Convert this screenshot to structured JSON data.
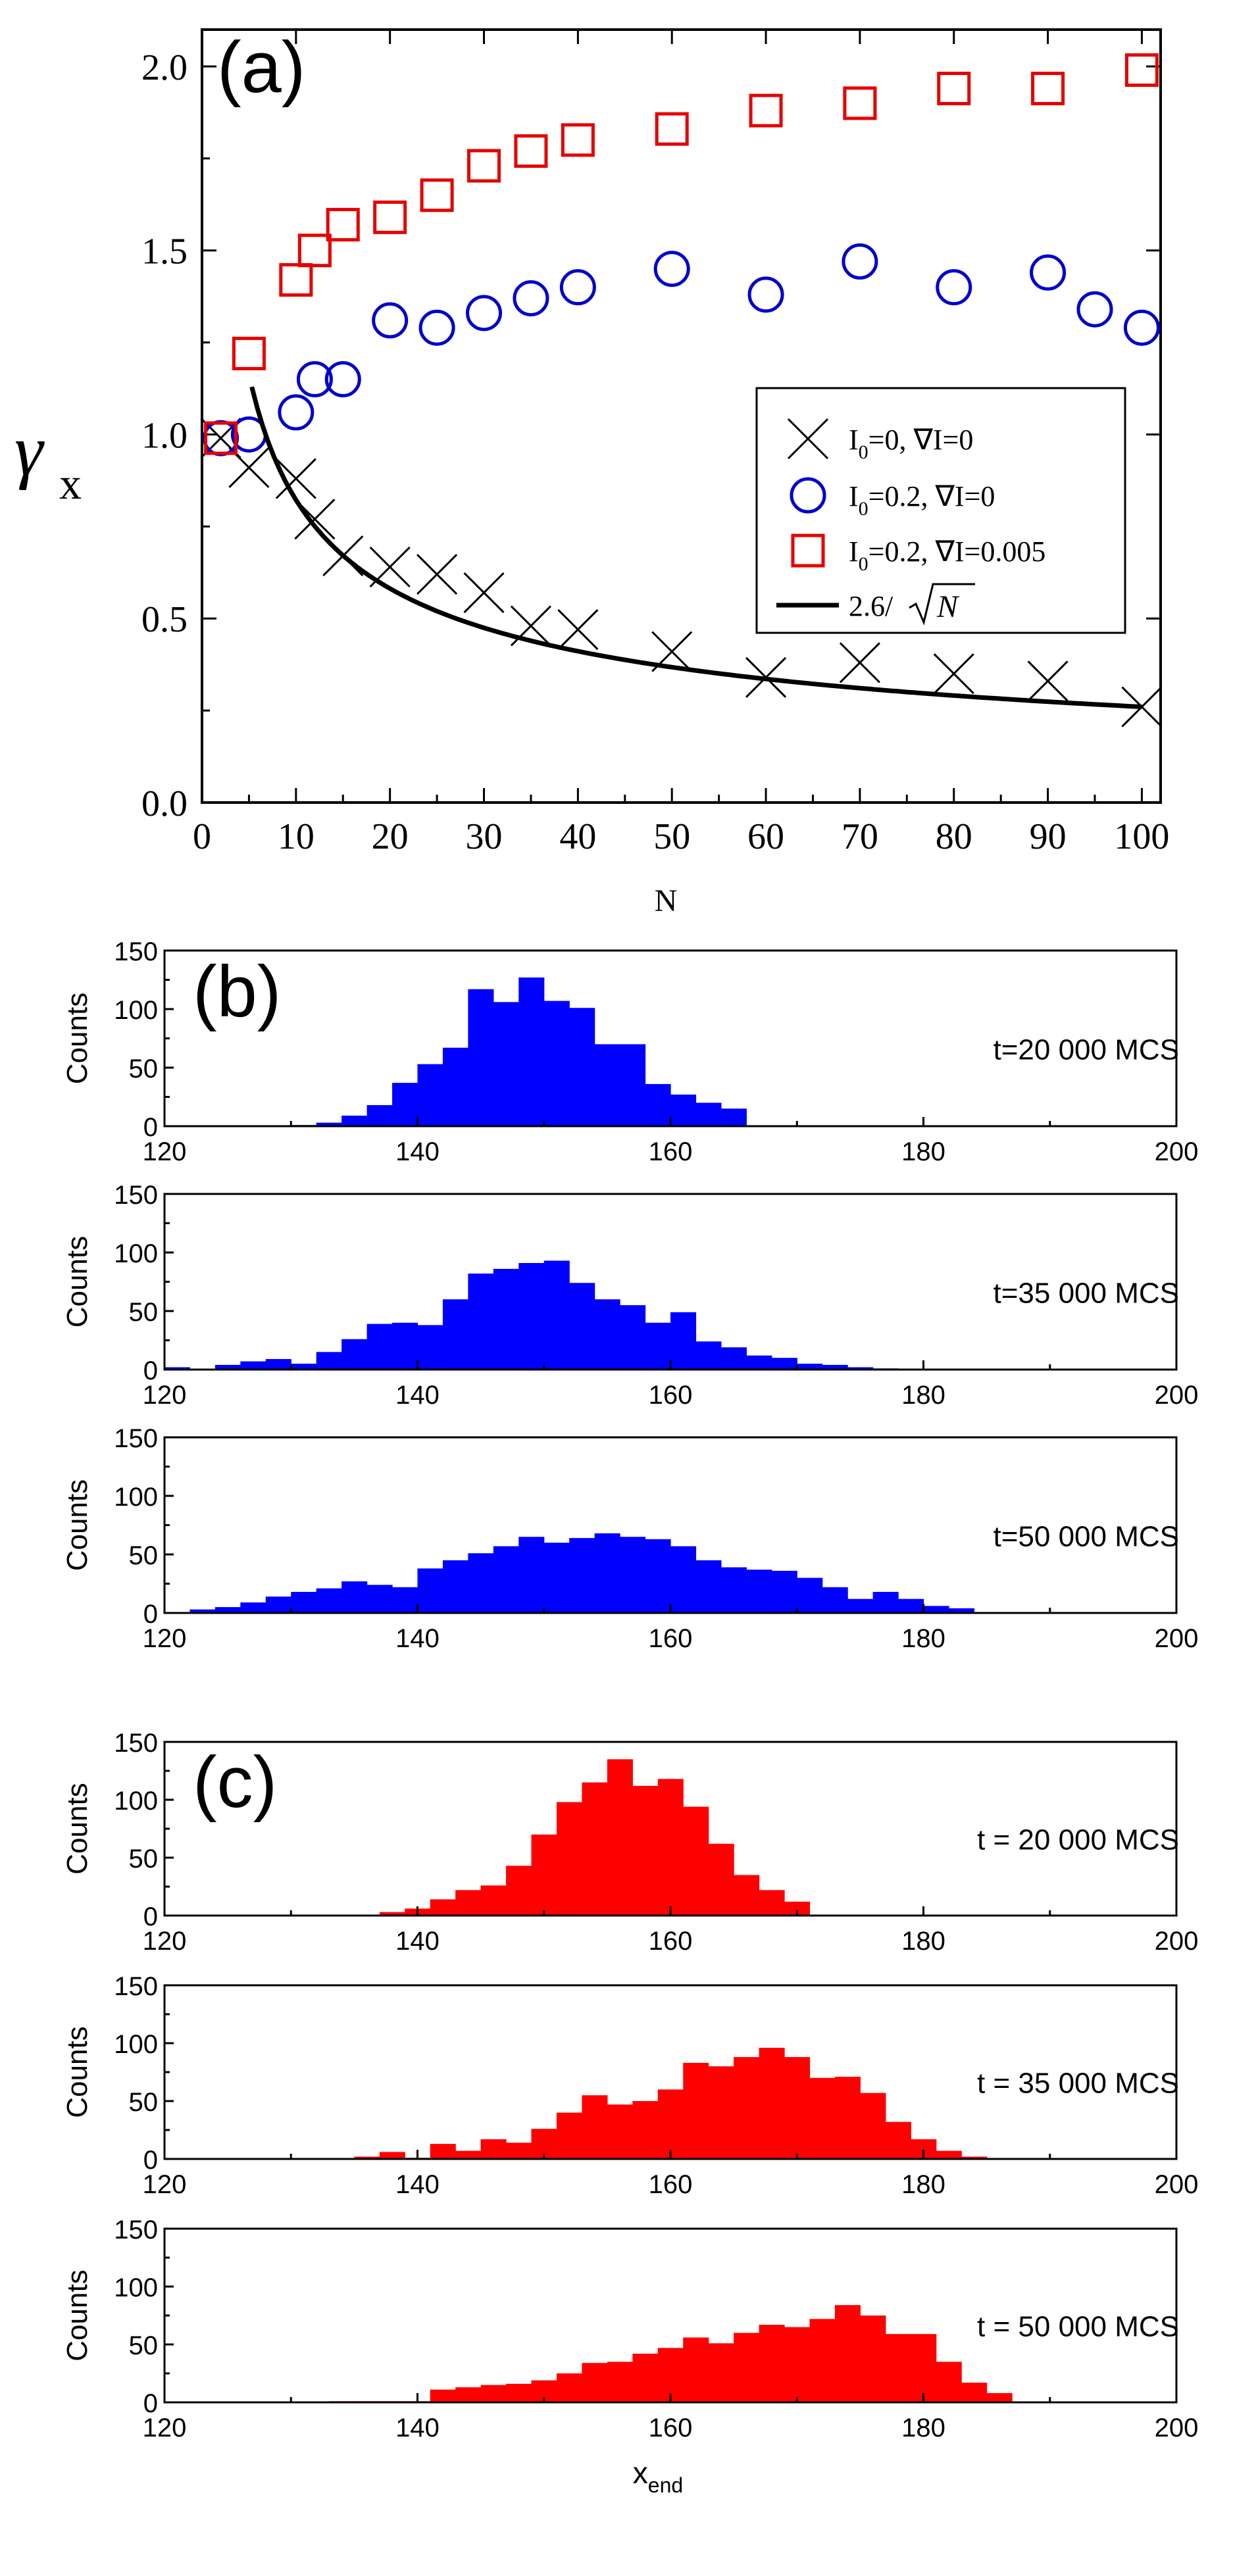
{
  "chart_data": [
    {
      "id": "a",
      "type": "scatter",
      "panel_label": "(a)",
      "xlabel": "N",
      "ylabel_main": "γ",
      "ylabel_sub": "x",
      "xlim": [
        0,
        102
      ],
      "ylim": [
        0,
        2.1
      ],
      "xticks": [
        "0",
        "10",
        "20",
        "30",
        "40",
        "50",
        "60",
        "70",
        "80",
        "90",
        "100"
      ],
      "yticks": [
        "0.0",
        "0.5",
        "1.0",
        "1.5",
        "2.0"
      ],
      "legend_position": "middle-right",
      "series": [
        {
          "name": "I0=0, ∇I=0",
          "legend_parts": [
            "I",
            "0",
            "=0, ∇I=0"
          ],
          "marker": "cross",
          "color": "#000000",
          "x": [
            2,
            5,
            10,
            12,
            15,
            20,
            25,
            30,
            35,
            40,
            50,
            60,
            70,
            80,
            90,
            100
          ],
          "y": [
            0.99,
            0.91,
            0.88,
            0.77,
            0.67,
            0.64,
            0.62,
            0.57,
            0.48,
            0.47,
            0.41,
            0.34,
            0.38,
            0.35,
            0.33,
            0.26
          ]
        },
        {
          "name": "I0=0.2, ∇I=0",
          "legend_parts": [
            "I",
            "0",
            "=0.2, ∇I=0"
          ],
          "marker": "circle",
          "color": "#0000cc",
          "x": [
            2,
            5,
            10,
            12,
            15,
            20,
            25,
            30,
            35,
            40,
            50,
            60,
            70,
            80,
            90,
            95,
            100
          ],
          "y": [
            0.99,
            1.0,
            1.06,
            1.15,
            1.15,
            1.31,
            1.29,
            1.33,
            1.37,
            1.4,
            1.45,
            1.38,
            1.47,
            1.4,
            1.44,
            1.34,
            1.29
          ]
        },
        {
          "name": "I0=0.2, ∇I=0.005",
          "legend_parts": [
            "I",
            "0",
            "=0.2, ∇I=0.005"
          ],
          "marker": "square",
          "color": "#e60000",
          "x": [
            2,
            5,
            10,
            12,
            15,
            20,
            25,
            30,
            35,
            40,
            50,
            60,
            70,
            80,
            90,
            100
          ],
          "y": [
            0.99,
            1.22,
            1.42,
            1.5,
            1.57,
            1.59,
            1.65,
            1.73,
            1.77,
            1.8,
            1.83,
            1.88,
            1.9,
            1.94,
            1.94,
            1.99
          ]
        },
        {
          "name": "2.6/√N",
          "legend_parts": [
            "2.6/",
            "N"
          ],
          "type": "curve",
          "color": "#000000",
          "formula": "2.6/sqrt(N)",
          "x_range": [
            5.3,
            100
          ]
        }
      ]
    },
    {
      "id": "b",
      "panel_label": "(b)",
      "color": "#0000ff",
      "histograms": [
        {
          "type": "bar",
          "annotation": "t=20 000 MCS",
          "ylabel": "Counts",
          "xlim": [
            120,
            200
          ],
          "ylim": [
            0,
            150
          ],
          "xticks": [
            "120",
            "140",
            "160",
            "180",
            "200"
          ],
          "yticks": [
            "0",
            "50",
            "100",
            "150"
          ],
          "bin_start": 130,
          "bin_width": 2,
          "values": [
            1,
            3,
            9,
            18,
            37,
            53,
            67,
            117,
            106,
            127,
            107,
            101,
            70,
            70,
            36,
            27,
            20,
            15,
            0
          ]
        },
        {
          "type": "bar",
          "annotation": "t=35 000 MCS",
          "ylabel": "Counts",
          "xlim": [
            120,
            200
          ],
          "ylim": [
            0,
            150
          ],
          "xticks": [
            "120",
            "140",
            "160",
            "180",
            "200"
          ],
          "yticks": [
            "0",
            "50",
            "100",
            "150"
          ],
          "bin_start": 120,
          "bin_width": 2,
          "values": [
            2,
            0,
            4,
            7,
            9,
            5,
            15,
            26,
            39,
            40,
            38,
            60,
            82,
            86,
            91,
            93,
            74,
            60,
            55,
            40,
            49,
            24,
            19,
            12,
            10,
            5,
            4,
            2,
            1
          ]
        },
        {
          "type": "bar",
          "annotation": "t=50 000 MCS",
          "ylabel": "Counts",
          "xlim": [
            120,
            200
          ],
          "ylim": [
            0,
            150
          ],
          "xticks": [
            "120",
            "140",
            "160",
            "180",
            "200"
          ],
          "yticks": [
            "0",
            "50",
            "100",
            "150"
          ],
          "bin_start": 122,
          "bin_width": 2,
          "values": [
            3,
            5,
            9,
            14,
            18,
            21,
            27,
            24,
            22,
            38,
            45,
            51,
            57,
            65,
            60,
            64,
            68,
            65,
            63,
            57,
            45,
            39,
            37,
            36,
            30,
            22,
            12,
            18,
            12,
            6,
            4
          ]
        }
      ]
    },
    {
      "id": "c",
      "panel_label": "(c)",
      "color": "#ff0000",
      "xlabel_main": "x",
      "xlabel_sub": "end",
      "histograms": [
        {
          "type": "bar",
          "annotation": "t = 20 000 MCS",
          "ylabel": "Counts",
          "xlim": [
            120,
            200
          ],
          "ylim": [
            0,
            150
          ],
          "xticks": [
            "120",
            "140",
            "160",
            "180",
            "200"
          ],
          "yticks": [
            "0",
            "50",
            "100",
            "150"
          ],
          "bin_start": 137,
          "bin_width": 2,
          "values": [
            3,
            6,
            14,
            22,
            26,
            43,
            70,
            98,
            115,
            135,
            112,
            118,
            94,
            62,
            35,
            22,
            12
          ]
        },
        {
          "type": "bar",
          "annotation": "t = 35 000 MCS",
          "ylabel": "Counts",
          "xlim": [
            120,
            200
          ],
          "ylim": [
            0,
            150
          ],
          "xticks": [
            "120",
            "140",
            "160",
            "180",
            "200"
          ],
          "yticks": [
            "0",
            "50",
            "100",
            "150"
          ],
          "bin_start": 135,
          "bin_width": 2,
          "values": [
            2,
            6,
            1,
            13,
            7,
            17,
            14,
            26,
            40,
            55,
            47,
            50,
            60,
            83,
            80,
            88,
            96,
            88,
            70,
            71,
            57,
            32,
            17,
            7,
            2
          ]
        },
        {
          "type": "bar",
          "annotation": "t = 50 000 MCS",
          "ylabel": "Counts",
          "xlim": [
            120,
            200
          ],
          "ylim": [
            0,
            150
          ],
          "xticks": [
            "120",
            "140",
            "160",
            "180",
            "200"
          ],
          "yticks": [
            "0",
            "50",
            "100",
            "150"
          ],
          "bin_start": 133,
          "bin_width": 2,
          "values": [
            1,
            1,
            1,
            1,
            11,
            13,
            15,
            16,
            19,
            25,
            34,
            35,
            42,
            47,
            56,
            51,
            60,
            67,
            65,
            72,
            84,
            75,
            59,
            59,
            35,
            17,
            8
          ]
        }
      ]
    }
  ]
}
